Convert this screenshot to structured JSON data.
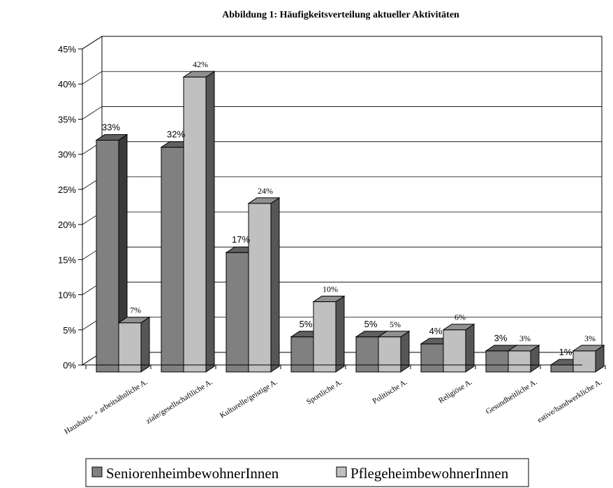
{
  "chart_data": {
    "type": "bar",
    "title": "Abbildung 1: Häufigkeitsverteilung aktueller Aktivitäten",
    "categories": [
      "Haushalts- + arbeitsähnliche A.",
      "ziale/gesellschaftliche A.",
      "Kulturelle/geistige A.",
      "Sportliche A.",
      "Politische A.",
      "Religiöse A.",
      "Gesundheitliche A.",
      "eative/handwerkliche A."
    ],
    "series": [
      {
        "name": "SeniorenheimbewohnerInnen",
        "values": [
          33,
          32,
          17,
          5,
          5,
          4,
          3,
          1
        ],
        "labels": [
          "33%",
          "32%",
          "17%",
          "5%",
          "5%",
          "4%",
          "3%",
          "1%"
        ],
        "color": "#808080"
      },
      {
        "name": "PflegeheimbewohnerInnen",
        "values": [
          7,
          42,
          24,
          10,
          5,
          6,
          3,
          3
        ],
        "labels": [
          "7%",
          "42%",
          "24%",
          "10%",
          "5%",
          "6%",
          "3%",
          "3%"
        ],
        "color": "#c0c0c0"
      }
    ],
    "ylim": [
      0,
      45
    ],
    "yticks": [
      "0%",
      "5%",
      "10%",
      "15%",
      "20%",
      "25%",
      "30%",
      "35%",
      "40%",
      "45%"
    ],
    "grid": true,
    "legend_position": "bottom"
  }
}
